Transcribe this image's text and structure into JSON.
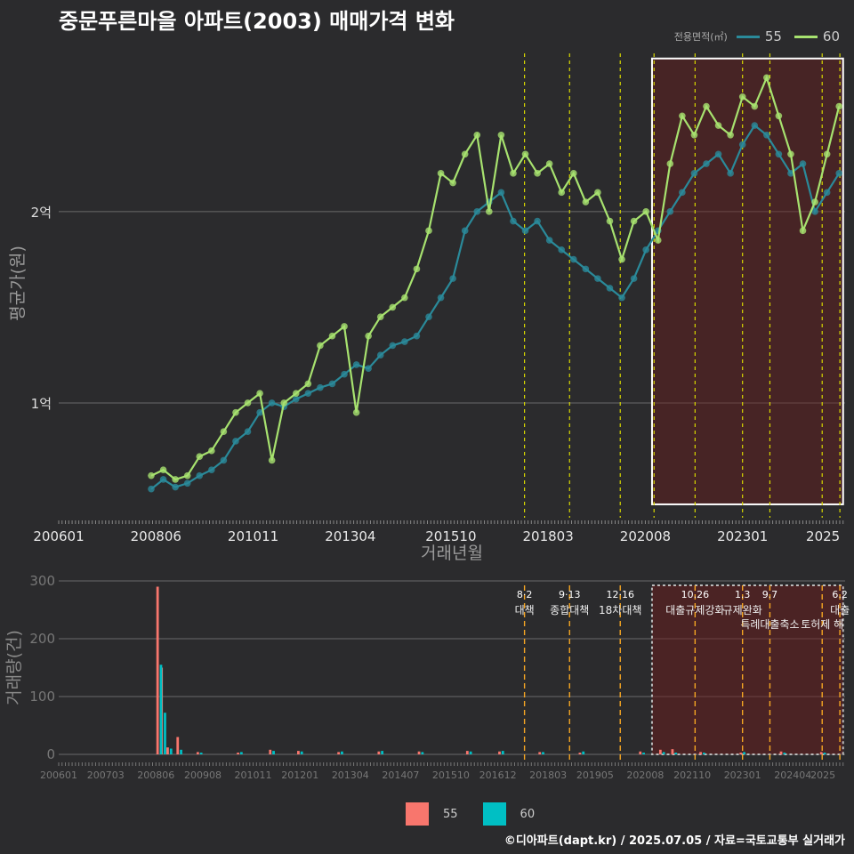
{
  "title": "중문푸른마을 아파트(2003) 매매가격 변화",
  "legend": {
    "title": "전용면적(㎡)",
    "items": [
      {
        "label": "55",
        "color": "#2a8a9a"
      },
      {
        "label": "60",
        "color": "#a7e26f"
      }
    ]
  },
  "bottom_legend": {
    "items": [
      {
        "label": "55",
        "color": "#f8766d"
      },
      {
        "label": "60",
        "color": "#00bfc4"
      }
    ]
  },
  "credit": "©디아파트(dapt.kr) / 2025.07.05 / 자료=국토교통부 실거래가",
  "chart_data": [
    {
      "type": "line",
      "title": "중문푸른마을 아파트(2003) 매매가격 변화",
      "xlabel": "거래년월",
      "ylabel": "평균가(원)",
      "x_ticks": [
        "200601",
        "200806",
        "201011",
        "201304",
        "201510",
        "201803",
        "202008",
        "202301",
        "2025"
      ],
      "y_ticks": [
        {
          "label": "1억",
          "value": 1.0
        },
        {
          "label": "2억",
          "value": 2.0
        }
      ],
      "ylim": [
        0.4,
        2.85
      ],
      "x_range": [
        2006.0,
        2025.55
      ],
      "highlight_range": [
        2020.75,
        2025.5
      ],
      "event_lines": [
        2017.58,
        2018.7,
        2019.96,
        2020.8,
        2021.82,
        2023.0,
        2023.68,
        2024.98,
        2025.42
      ],
      "series": [
        {
          "name": "55",
          "color": "#2a8a9a",
          "x": [
            2008.3,
            2008.6,
            2008.9,
            2009.2,
            2009.5,
            2009.8,
            2010.1,
            2010.4,
            2010.7,
            2011.0,
            2011.3,
            2011.6,
            2011.9,
            2012.2,
            2012.5,
            2012.8,
            2013.1,
            2013.4,
            2013.7,
            2014.0,
            2014.3,
            2014.6,
            2014.9,
            2015.2,
            2015.5,
            2015.8,
            2016.1,
            2016.4,
            2016.7,
            2017.0,
            2017.3,
            2017.6,
            2017.9,
            2018.2,
            2018.5,
            2018.8,
            2019.1,
            2019.4,
            2019.7,
            2020.0,
            2020.3,
            2020.6,
            2020.9,
            2021.2,
            2021.5,
            2021.8,
            2022.1,
            2022.4,
            2022.7,
            2023.0,
            2023.3,
            2023.6,
            2023.9,
            2024.2,
            2024.5,
            2024.8,
            2025.1,
            2025.4
          ],
          "y": [
            0.55,
            0.6,
            0.56,
            0.58,
            0.62,
            0.65,
            0.7,
            0.8,
            0.85,
            0.95,
            1.0,
            0.98,
            1.02,
            1.05,
            1.08,
            1.1,
            1.15,
            1.2,
            1.18,
            1.25,
            1.3,
            1.32,
            1.35,
            1.45,
            1.55,
            1.65,
            1.9,
            2.0,
            2.05,
            2.1,
            1.95,
            1.9,
            1.95,
            1.85,
            1.8,
            1.75,
            1.7,
            1.65,
            1.6,
            1.55,
            1.65,
            1.8,
            1.9,
            2.0,
            2.1,
            2.2,
            2.25,
            2.3,
            2.2,
            2.35,
            2.45,
            2.4,
            2.3,
            2.2,
            2.25,
            2.0,
            2.1,
            2.2
          ]
        },
        {
          "name": "60",
          "color": "#a7e26f",
          "x": [
            2008.3,
            2008.6,
            2008.9,
            2009.2,
            2009.5,
            2009.8,
            2010.1,
            2010.4,
            2010.7,
            2011.0,
            2011.3,
            2011.6,
            2011.9,
            2012.2,
            2012.5,
            2012.8,
            2013.1,
            2013.4,
            2013.7,
            2014.0,
            2014.3,
            2014.6,
            2014.9,
            2015.2,
            2015.5,
            2015.8,
            2016.1,
            2016.4,
            2016.7,
            2017.0,
            2017.3,
            2017.6,
            2017.9,
            2018.2,
            2018.5,
            2018.8,
            2019.1,
            2019.4,
            2019.7,
            2020.0,
            2020.3,
            2020.6,
            2020.9,
            2021.2,
            2021.5,
            2021.8,
            2022.1,
            2022.4,
            2022.7,
            2023.0,
            2023.3,
            2023.6,
            2023.9,
            2024.2,
            2024.5,
            2024.8,
            2025.1,
            2025.4
          ],
          "y": [
            0.62,
            0.65,
            0.6,
            0.62,
            0.72,
            0.75,
            0.85,
            0.95,
            1.0,
            1.05,
            0.7,
            1.0,
            1.05,
            1.1,
            1.3,
            1.35,
            1.4,
            0.95,
            1.35,
            1.45,
            1.5,
            1.55,
            1.7,
            1.9,
            2.2,
            2.15,
            2.3,
            2.4,
            2.0,
            2.4,
            2.2,
            2.3,
            2.2,
            2.25,
            2.1,
            2.2,
            2.05,
            2.1,
            1.95,
            1.75,
            1.95,
            2.0,
            1.85,
            2.25,
            2.5,
            2.4,
            2.55,
            2.45,
            2.4,
            2.6,
            2.55,
            2.7,
            2.5,
            2.3,
            1.9,
            2.05,
            2.3,
            2.55
          ]
        }
      ]
    },
    {
      "type": "bar",
      "ylabel": "거래량(건)",
      "y_ticks": [
        0,
        100,
        200,
        300
      ],
      "ylim": [
        0,
        300
      ],
      "x_ticks": [
        "200601",
        "200703",
        "200806",
        "200908",
        "201011",
        "201201",
        "201304",
        "201407",
        "201510",
        "201612",
        "201803",
        "201905",
        "202008",
        "202110",
        "202301",
        "202404",
        "2025"
      ],
      "highlight_range": [
        2020.75,
        2025.5
      ],
      "series": [
        {
          "name": "55",
          "color": "#f8766d",
          "x": [
            2008.5,
            2008.6,
            2008.75,
            2009.0,
            2009.5,
            2010.5,
            2011.3,
            2012.0,
            2013.0,
            2014.0,
            2015.0,
            2016.2,
            2017.0,
            2018.0,
            2019.0,
            2020.5,
            2021.0,
            2021.3,
            2022.0,
            2023.0,
            2024.0,
            2025.0
          ],
          "values": [
            290,
            150,
            12,
            30,
            4,
            3,
            8,
            6,
            4,
            5,
            5,
            6,
            5,
            4,
            3,
            5,
            8,
            9,
            4,
            3,
            5,
            4
          ]
        },
        {
          "name": "60",
          "color": "#00bfc4",
          "x": [
            2008.5,
            2008.6,
            2008.75,
            2009.0,
            2009.5,
            2010.5,
            2011.3,
            2012.0,
            2013.0,
            2014.0,
            2015.0,
            2016.2,
            2017.0,
            2018.0,
            2019.0,
            2020.5,
            2021.0,
            2021.3,
            2022.0,
            2023.0,
            2024.0,
            2025.0
          ],
          "values": [
            155,
            72,
            10,
            8,
            3,
            4,
            6,
            5,
            5,
            6,
            4,
            5,
            6,
            4,
            5,
            3,
            4,
            3,
            3,
            4,
            3,
            3
          ]
        }
      ],
      "annotations": [
        {
          "date": "8·2",
          "text": "대책",
          "x": 2017.58
        },
        {
          "date": "9·13",
          "text": "종합대책",
          "x": 2018.7
        },
        {
          "date": "12·16",
          "text": "18차대책",
          "x": 2019.96
        },
        {
          "date": "10.26",
          "text": "대출규제강화",
          "x": 2021.82
        },
        {
          "date": "1.3",
          "text": "규제완화",
          "x": 2023.0
        },
        {
          "date": "9.7",
          "text": "특례대출축소",
          "x": 2023.68
        },
        {
          "date": "",
          "text": "토허제 해",
          "x": 2024.98
        },
        {
          "date": "6.2",
          "text": "대출",
          "x": 2025.42
        }
      ]
    }
  ]
}
